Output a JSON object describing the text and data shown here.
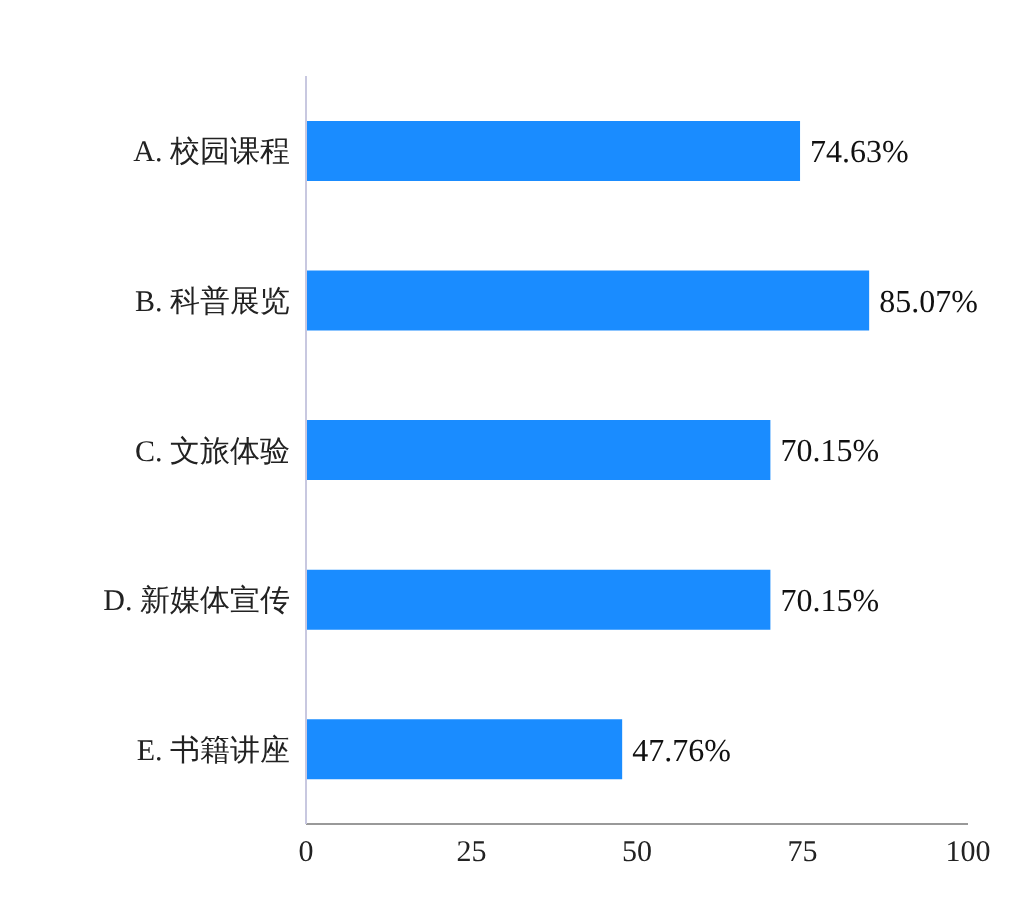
{
  "chart_data": {
    "type": "bar",
    "orientation": "horizontal",
    "categories": [
      "A. 校园课程",
      "B. 科普展览",
      "C. 文旅体验",
      "D. 新媒体宣传",
      "E. 书籍讲座"
    ],
    "values": [
      74.63,
      85.07,
      70.15,
      70.15,
      47.76
    ],
    "value_labels": [
      "74.63%",
      "85.07%",
      "70.15%",
      "70.15%",
      "47.76%"
    ],
    "color": "#1a8cff",
    "xlim": [
      0,
      100
    ],
    "xticks": [
      0,
      25,
      50,
      75,
      100
    ],
    "grid": false,
    "legend": false
  }
}
